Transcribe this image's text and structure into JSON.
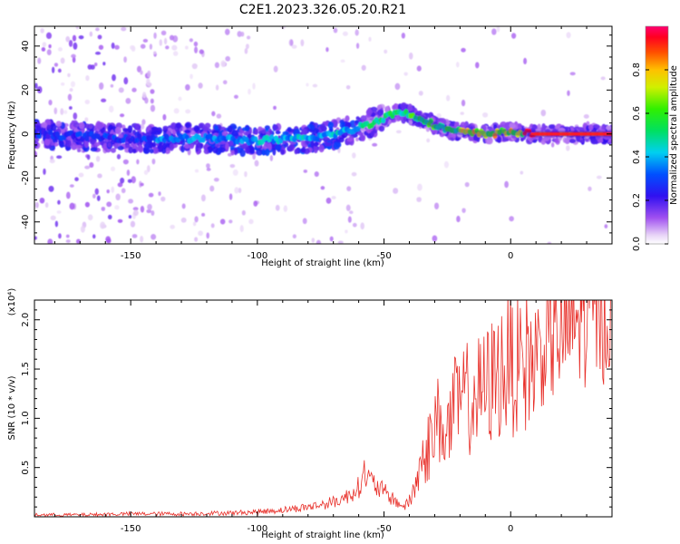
{
  "title": "C2E1.2023.326.05.20.R21",
  "chart_data": [
    {
      "type": "heatmap",
      "xlabel": "Height of straight line (km)",
      "ylabel": "Frequency (Hz)",
      "xlim": [
        -188,
        40
      ],
      "ylim": [
        -50,
        49
      ],
      "xticks": [
        -150,
        -100,
        -50,
        0
      ],
      "yticks": [
        -40,
        -20,
        0,
        20,
        40
      ],
      "colorbar": {
        "label": "Normalized spectral amplitude",
        "range": [
          0,
          1
        ],
        "ticks": [
          "0.0",
          "0.2",
          "0.4",
          "0.6",
          "0.8"
        ],
        "colormap": "rainbow (white-violet-blue-cyan-green-yellow-orange-red-magenta)"
      },
      "ridge": {
        "description": "frequency-drifting spectral feature",
        "points": [
          [
            -188,
            0
          ],
          [
            -150,
            -2
          ],
          [
            -120,
            -2
          ],
          [
            -100,
            -3
          ],
          [
            -80,
            -2
          ],
          [
            -65,
            1
          ],
          [
            -55,
            5
          ],
          [
            -45,
            10
          ],
          [
            -40,
            9
          ],
          [
            -35,
            7
          ],
          [
            -30,
            4
          ],
          [
            -25,
            2
          ],
          [
            -20,
            1
          ],
          [
            -10,
            0
          ],
          [
            0,
            1
          ],
          [
            10,
            0
          ],
          [
            20,
            0
          ],
          [
            40,
            0
          ]
        ]
      },
      "grid": false
    },
    {
      "type": "line",
      "xlabel": "Height of straight line (km)",
      "ylabel": "SNR (10 * v/v)",
      "yscale_label": "(x10⁴)",
      "xlim": [
        -188,
        40
      ],
      "ylim": [
        0,
        2.2
      ],
      "xticks": [
        -150,
        -100,
        -50,
        0
      ],
      "yticks": [
        0.5,
        1.0,
        1.5,
        2.0
      ],
      "series": [
        {
          "color": "#e8302a",
          "x": [
            -188,
            -170,
            -150,
            -130,
            -110,
            -100,
            -90,
            -80,
            -75,
            -70,
            -65,
            -60,
            -58,
            -55,
            -50,
            -45,
            -42,
            -40,
            -38,
            -35,
            -32,
            -30,
            -28,
            -25,
            -22,
            -20,
            -18,
            -15,
            -12,
            -10,
            -8,
            -5,
            -3,
            0,
            2,
            5,
            8,
            10,
            12,
            15,
            18,
            20,
            22,
            25,
            28,
            30,
            33,
            36,
            40
          ],
          "values": [
            0.02,
            0.02,
            0.03,
            0.03,
            0.04,
            0.05,
            0.07,
            0.1,
            0.12,
            0.15,
            0.2,
            0.3,
            0.45,
            0.35,
            0.25,
            0.15,
            0.1,
            0.15,
            0.3,
            0.55,
            0.75,
            0.9,
            1.0,
            0.85,
            1.1,
            1.15,
            1.2,
            1.2,
            1.25,
            1.3,
            1.35,
            1.45,
            1.5,
            1.6,
            1.5,
            1.6,
            1.55,
            1.65,
            1.7,
            1.75,
            1.8,
            1.85,
            1.9,
            1.95,
            2.0,
            2.02,
            2.05,
            2.05,
            2.07
          ]
        }
      ],
      "grid": false
    }
  ]
}
